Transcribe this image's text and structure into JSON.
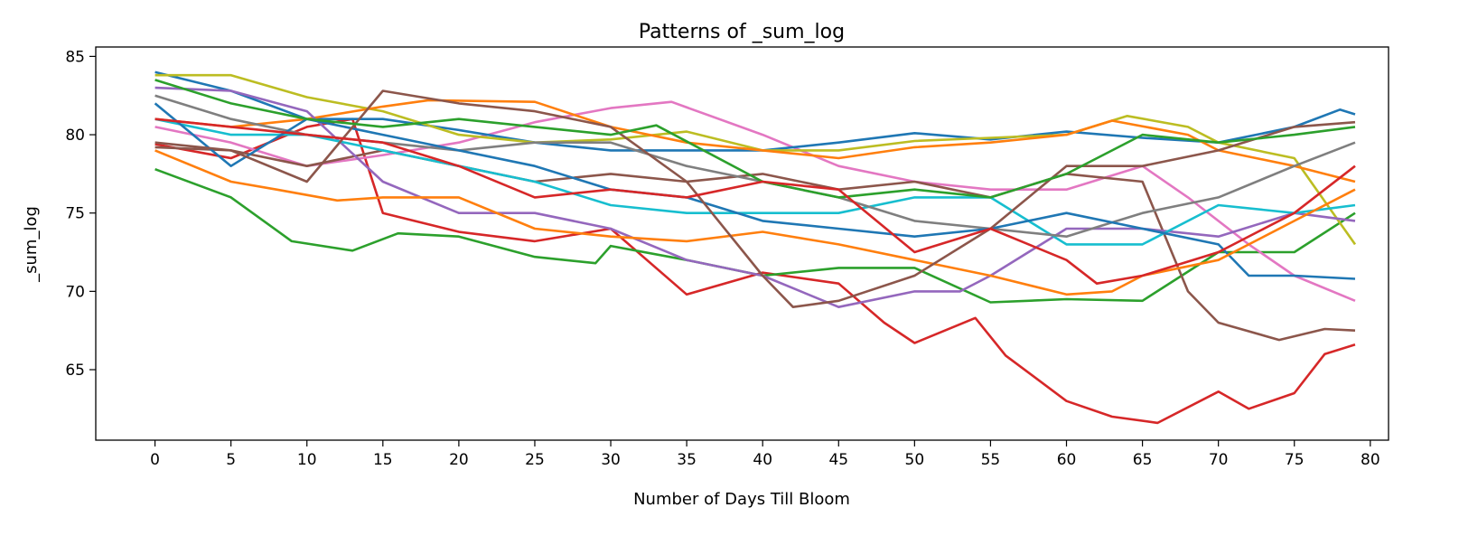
{
  "chart_data": {
    "type": "line",
    "title": "Patterns of _sum_log",
    "xlabel": "Number of Days Till Bloom",
    "ylabel": "_sum_log",
    "xlim": [
      -3.9,
      81.2
    ],
    "ylim": [
      60.5,
      85.6
    ],
    "xticks": [
      0,
      5,
      10,
      15,
      20,
      25,
      30,
      35,
      40,
      45,
      50,
      55,
      60,
      65,
      70,
      75,
      80
    ],
    "yticks": [
      65,
      70,
      75,
      80,
      85
    ],
    "grid": false,
    "legend": "none",
    "series": [
      {
        "color": "#d62728",
        "points": [
          [
            0,
            79.4
          ],
          [
            5,
            78.5
          ],
          [
            10,
            80.5
          ],
          [
            13,
            81
          ],
          [
            15,
            75
          ],
          [
            20,
            73.8
          ],
          [
            25,
            73.2
          ],
          [
            30,
            74
          ],
          [
            35,
            69.8
          ],
          [
            40,
            71.2
          ],
          [
            45,
            70.5
          ],
          [
            48,
            68
          ],
          [
            50,
            66.7
          ],
          [
            54,
            68.3
          ],
          [
            56,
            65.9
          ],
          [
            60,
            63
          ],
          [
            63,
            62
          ],
          [
            66,
            61.6
          ],
          [
            70,
            63.6
          ],
          [
            72,
            62.5
          ],
          [
            75,
            63.5
          ],
          [
            77,
            66
          ],
          [
            79,
            66.6
          ]
        ]
      },
      {
        "color": "#2ca02c",
        "points": [
          [
            0,
            77.8
          ],
          [
            5,
            76
          ],
          [
            9,
            73.2
          ],
          [
            13,
            72.6
          ],
          [
            16,
            73.7
          ],
          [
            20,
            73.5
          ],
          [
            25,
            72.2
          ],
          [
            29,
            71.8
          ],
          [
            30,
            72.9
          ],
          [
            35,
            72
          ],
          [
            40,
            71
          ],
          [
            45,
            71.5
          ],
          [
            50,
            71.5
          ],
          [
            55,
            69.3
          ],
          [
            60,
            69.5
          ],
          [
            65,
            69.4
          ],
          [
            70,
            72.5
          ],
          [
            75,
            72.5
          ],
          [
            79,
            75
          ]
        ]
      },
      {
        "color": "#e377c2",
        "points": [
          [
            0,
            80.5
          ],
          [
            5,
            79.5
          ],
          [
            10,
            78
          ],
          [
            15,
            78.7
          ],
          [
            20,
            79.5
          ],
          [
            25,
            80.8
          ],
          [
            30,
            81.7
          ],
          [
            34,
            82.1
          ],
          [
            40,
            80
          ],
          [
            45,
            78
          ],
          [
            50,
            77
          ],
          [
            55,
            76.5
          ],
          [
            60,
            76.5
          ],
          [
            65,
            78
          ],
          [
            68,
            76
          ],
          [
            72,
            73
          ],
          [
            75,
            71
          ],
          [
            79,
            69.4
          ]
        ]
      },
      {
        "color": "#8c564b",
        "points": [
          [
            0,
            79.2
          ],
          [
            5,
            79
          ],
          [
            10,
            78
          ],
          [
            15,
            79
          ],
          [
            20,
            78
          ],
          [
            25,
            77
          ],
          [
            30,
            77.5
          ],
          [
            35,
            77
          ],
          [
            40,
            77.5
          ],
          [
            45,
            76.5
          ],
          [
            50,
            77
          ],
          [
            55,
            76
          ],
          [
            60,
            77.5
          ],
          [
            65,
            77
          ],
          [
            68,
            70
          ],
          [
            70,
            68
          ],
          [
            74,
            66.9
          ],
          [
            77,
            67.6
          ],
          [
            79,
            67.5
          ]
        ]
      },
      {
        "color": "#1f77b4",
        "points": [
          [
            0,
            84
          ],
          [
            5,
            82.8
          ],
          [
            10,
            81
          ],
          [
            15,
            81
          ],
          [
            20,
            80.3
          ],
          [
            25,
            79.5
          ],
          [
            30,
            79
          ],
          [
            35,
            79
          ],
          [
            40,
            79
          ],
          [
            45,
            79.5
          ],
          [
            50,
            80.1
          ],
          [
            55,
            79.7
          ],
          [
            60,
            80.2
          ],
          [
            65,
            79.8
          ],
          [
            70,
            79.5
          ],
          [
            75,
            80.5
          ],
          [
            78,
            81.6
          ],
          [
            79,
            81.3
          ]
        ]
      },
      {
        "color": "#bcbd22",
        "points": [
          [
            0,
            83.8
          ],
          [
            5,
            83.8
          ],
          [
            10,
            82.4
          ],
          [
            15,
            81.5
          ],
          [
            20,
            80
          ],
          [
            25,
            79.5
          ],
          [
            30,
            79.7
          ],
          [
            35,
            80.2
          ],
          [
            40,
            79
          ],
          [
            45,
            79
          ],
          [
            50,
            79.6
          ],
          [
            55,
            79.8
          ],
          [
            60,
            80
          ],
          [
            64,
            81.2
          ],
          [
            68,
            80.5
          ],
          [
            70,
            79.5
          ],
          [
            75,
            78.5
          ],
          [
            79,
            73
          ]
        ]
      },
      {
        "color": "#ff7f0e",
        "points": [
          [
            0,
            81
          ],
          [
            5,
            80.5
          ],
          [
            10,
            81
          ],
          [
            15,
            81.8
          ],
          [
            18,
            82.2
          ],
          [
            25,
            82.1
          ],
          [
            30,
            80.5
          ],
          [
            35,
            79.5
          ],
          [
            40,
            79
          ],
          [
            45,
            78.5
          ],
          [
            50,
            79.2
          ],
          [
            55,
            79.5
          ],
          [
            60,
            80
          ],
          [
            63,
            80.9
          ],
          [
            68,
            80
          ],
          [
            70,
            79
          ],
          [
            75,
            78
          ],
          [
            79,
            77
          ]
        ]
      },
      {
        "color": "#9467bd",
        "points": [
          [
            0,
            83
          ],
          [
            5,
            82.8
          ],
          [
            10,
            81.5
          ],
          [
            15,
            77
          ],
          [
            20,
            75
          ],
          [
            25,
            75
          ],
          [
            30,
            74
          ],
          [
            35,
            72
          ],
          [
            40,
            71
          ],
          [
            45,
            69
          ],
          [
            50,
            70
          ],
          [
            53,
            70
          ],
          [
            55,
            71
          ],
          [
            60,
            74
          ],
          [
            65,
            74
          ],
          [
            70,
            73.5
          ],
          [
            75,
            75
          ],
          [
            79,
            74.5
          ]
        ]
      },
      {
        "color": "#17becf",
        "points": [
          [
            0,
            81
          ],
          [
            5,
            80
          ],
          [
            10,
            80
          ],
          [
            15,
            79
          ],
          [
            20,
            78
          ],
          [
            25,
            77
          ],
          [
            30,
            75.5
          ],
          [
            35,
            75
          ],
          [
            40,
            75
          ],
          [
            45,
            75
          ],
          [
            50,
            76
          ],
          [
            55,
            76
          ],
          [
            60,
            73
          ],
          [
            65,
            73
          ],
          [
            70,
            75.5
          ],
          [
            75,
            75
          ],
          [
            79,
            75.5
          ]
        ]
      },
      {
        "color": "#7f7f7f",
        "points": [
          [
            0,
            82.5
          ],
          [
            5,
            81
          ],
          [
            10,
            80
          ],
          [
            15,
            79.5
          ],
          [
            20,
            79
          ],
          [
            25,
            79.5
          ],
          [
            30,
            79.5
          ],
          [
            35,
            78
          ],
          [
            40,
            77
          ],
          [
            45,
            76
          ],
          [
            50,
            74.5
          ],
          [
            55,
            74
          ],
          [
            60,
            73.5
          ],
          [
            65,
            75
          ],
          [
            70,
            76
          ],
          [
            75,
            78
          ],
          [
            79,
            79.5
          ]
        ]
      },
      {
        "color": "#1f77b4",
        "points": [
          [
            0,
            82
          ],
          [
            5,
            78
          ],
          [
            10,
            81
          ],
          [
            15,
            80
          ],
          [
            20,
            79
          ],
          [
            25,
            78
          ],
          [
            30,
            76.5
          ],
          [
            35,
            76
          ],
          [
            40,
            74.5
          ],
          [
            45,
            74
          ],
          [
            50,
            73.5
          ],
          [
            55,
            74
          ],
          [
            60,
            75
          ],
          [
            65,
            74
          ],
          [
            70,
            73
          ],
          [
            72,
            71
          ],
          [
            75,
            71
          ],
          [
            79,
            70.8
          ]
        ]
      },
      {
        "color": "#ff7f0e",
        "points": [
          [
            0,
            79
          ],
          [
            5,
            77
          ],
          [
            8,
            76.5
          ],
          [
            12,
            75.8
          ],
          [
            15,
            76
          ],
          [
            20,
            76
          ],
          [
            25,
            74
          ],
          [
            30,
            73.5
          ],
          [
            35,
            73.2
          ],
          [
            40,
            73.8
          ],
          [
            45,
            73
          ],
          [
            50,
            72
          ],
          [
            55,
            71
          ],
          [
            60,
            69.8
          ],
          [
            63,
            70
          ],
          [
            65,
            71
          ],
          [
            70,
            72
          ],
          [
            75,
            74.5
          ],
          [
            79,
            76.5
          ]
        ]
      },
      {
        "color": "#8c564b",
        "points": [
          [
            0,
            79.5
          ],
          [
            5,
            79
          ],
          [
            10,
            77
          ],
          [
            15,
            82.8
          ],
          [
            20,
            82
          ],
          [
            25,
            81.5
          ],
          [
            30,
            80.5
          ],
          [
            35,
            77
          ],
          [
            40,
            71
          ],
          [
            42,
            69
          ],
          [
            45,
            69.4
          ],
          [
            50,
            71
          ],
          [
            55,
            74
          ],
          [
            60,
            78
          ],
          [
            65,
            78
          ],
          [
            70,
            79
          ],
          [
            75,
            80.5
          ],
          [
            79,
            80.8
          ]
        ]
      },
      {
        "color": "#2ca02c",
        "points": [
          [
            0,
            83.5
          ],
          [
            5,
            82
          ],
          [
            10,
            81
          ],
          [
            15,
            80.5
          ],
          [
            20,
            81
          ],
          [
            25,
            80.5
          ],
          [
            30,
            80
          ],
          [
            33,
            80.6
          ],
          [
            40,
            77
          ],
          [
            45,
            76
          ],
          [
            50,
            76.5
          ],
          [
            55,
            76
          ],
          [
            60,
            77.5
          ],
          [
            65,
            80
          ],
          [
            70,
            79.5
          ],
          [
            75,
            80
          ],
          [
            79,
            80.5
          ]
        ]
      },
      {
        "color": "#d62728",
        "points": [
          [
            0,
            81
          ],
          [
            5,
            80.5
          ],
          [
            10,
            80
          ],
          [
            15,
            79.5
          ],
          [
            20,
            78
          ],
          [
            25,
            76
          ],
          [
            30,
            76.5
          ],
          [
            35,
            76
          ],
          [
            40,
            77
          ],
          [
            45,
            76.5
          ],
          [
            50,
            72.5
          ],
          [
            55,
            74
          ],
          [
            60,
            72
          ],
          [
            62,
            70.5
          ],
          [
            65,
            71
          ],
          [
            70,
            72.5
          ],
          [
            75,
            75
          ],
          [
            79,
            78
          ]
        ]
      }
    ]
  }
}
